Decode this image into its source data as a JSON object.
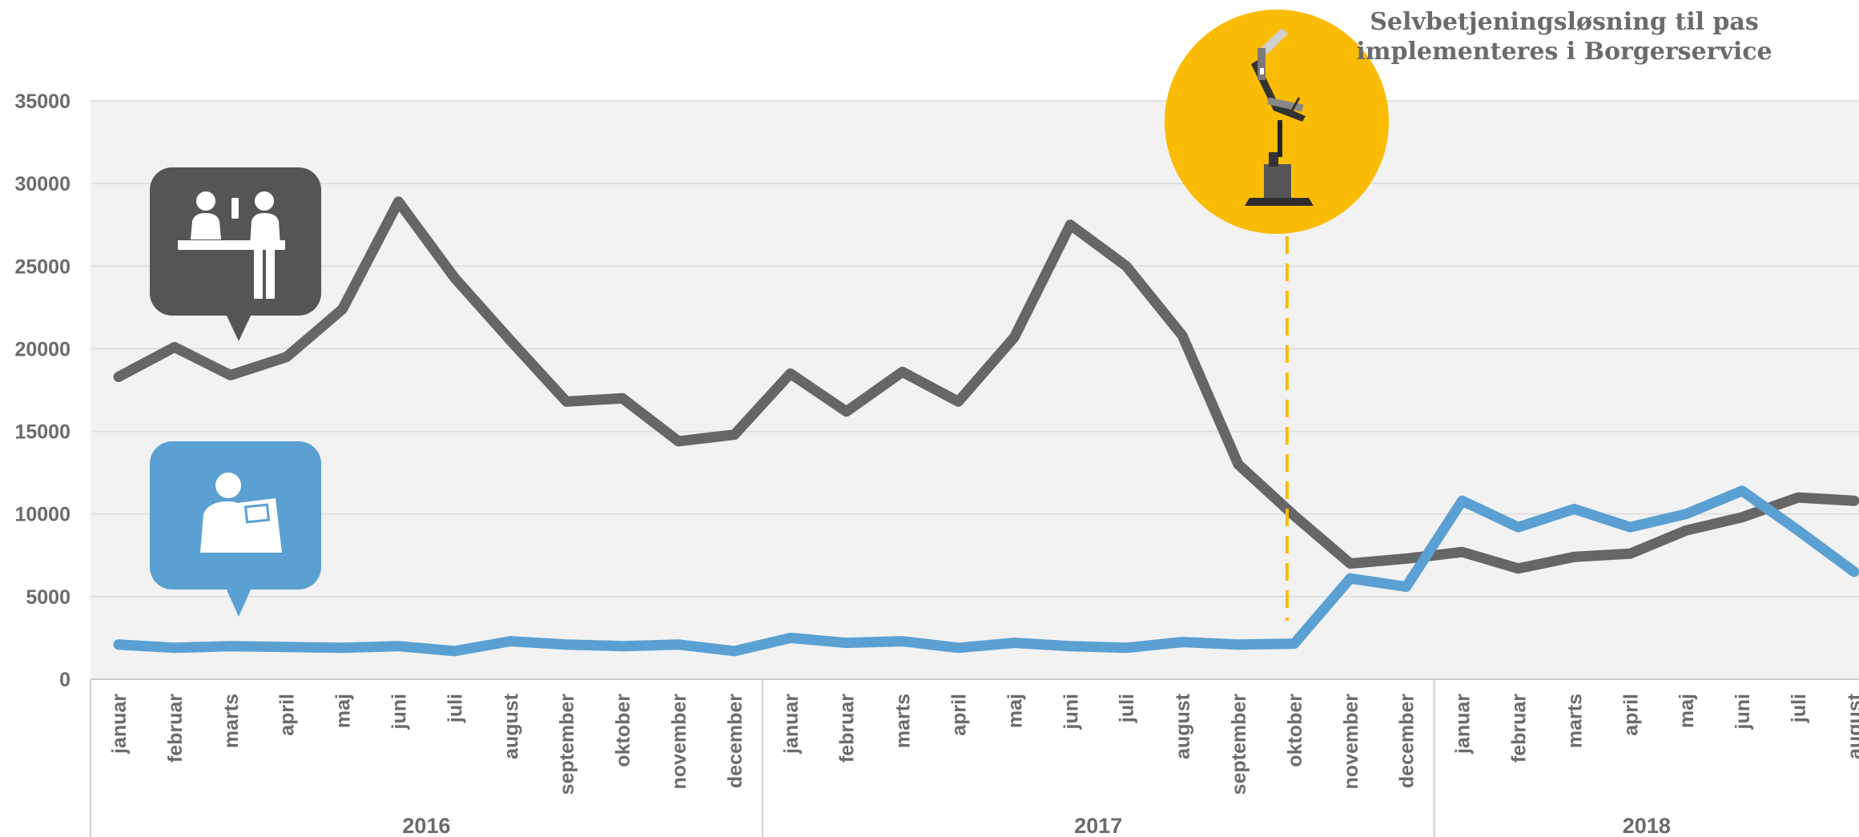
{
  "colors": {
    "in_person": "#666666",
    "self_service": "#5aa0d2",
    "highlight": "#fabc05",
    "plot_bg": "#f2f2f2",
    "grid": "#e0e0e0",
    "text": "#6b6b6b"
  },
  "icons": {
    "in_person": "counter-service-icon",
    "self_service": "self-service-terminal-icon",
    "kiosk": "passport-kiosk-icon"
  },
  "annotation": {
    "line1": "Selvbetjeningsløsning til pas",
    "line2": "implementeres i Borgerservice",
    "at_month_index": 21
  },
  "chart_data": {
    "type": "line",
    "ylim": [
      0,
      35000
    ],
    "yticks": [
      0,
      5000,
      10000,
      15000,
      20000,
      25000,
      30000,
      35000
    ],
    "grid": true,
    "legend": "none",
    "months": [
      "januar",
      "februar",
      "marts",
      "april",
      "maj",
      "juni",
      "juli",
      "august",
      "september",
      "oktober",
      "november",
      "december",
      "januar",
      "februar",
      "marts",
      "april",
      "maj",
      "juni",
      "juli",
      "august",
      "september",
      "oktober",
      "november",
      "december",
      "januar",
      "februar",
      "marts",
      "april",
      "maj",
      "juni",
      "juli",
      "august"
    ],
    "years": [
      {
        "label": "2016",
        "start": 0,
        "count": 12
      },
      {
        "label": "2017",
        "start": 12,
        "count": 12
      },
      {
        "label": "2018",
        "start": 24,
        "count": 8
      }
    ],
    "series": [
      {
        "key": "in_person",
        "values": [
          18300,
          20100,
          18400,
          19500,
          22400,
          28900,
          24300,
          20500,
          16800,
          17000,
          14400,
          14800,
          18500,
          16200,
          18600,
          16800,
          20700,
          27500,
          25000,
          20800,
          13000,
          9900,
          7000,
          7300,
          7700,
          6700,
          7400,
          7600,
          9000,
          9800,
          11000,
          10800
        ]
      },
      {
        "key": "self_service",
        "values": [
          2100,
          1900,
          2000,
          1950,
          1900,
          2000,
          1700,
          2300,
          2100,
          2000,
          2100,
          1700,
          2500,
          2200,
          2300,
          1900,
          2200,
          2000,
          1900,
          2250,
          2100,
          2150,
          6100,
          5600,
          10800,
          9200,
          10300,
          9200,
          10000,
          11400,
          9000,
          6500
        ]
      }
    ]
  }
}
